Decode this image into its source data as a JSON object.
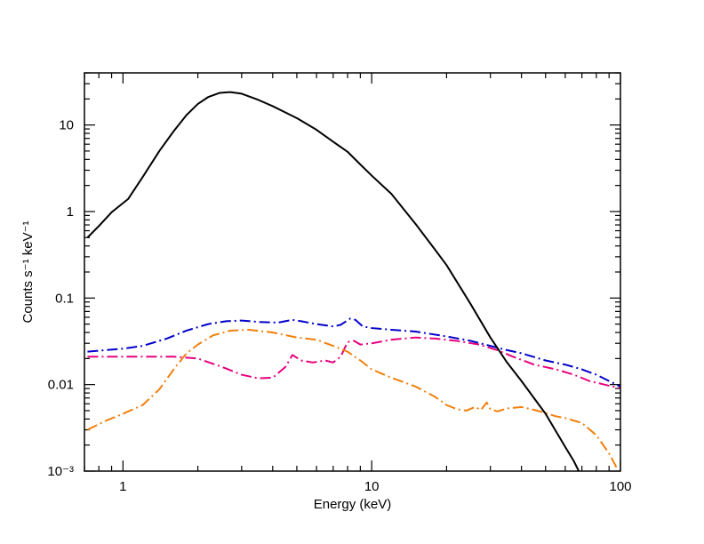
{
  "chart_data": {
    "type": "line",
    "title": "",
    "xlabel": "Energy (keV)",
    "ylabel": "Counts s⁻¹ keV⁻¹",
    "xscale": "log",
    "yscale": "log",
    "xlim": [
      0.7,
      100
    ],
    "ylim": [
      0.001,
      40
    ],
    "grid": false,
    "legend": "none",
    "x_ticks": [
      {
        "value": 1,
        "label": "1"
      },
      {
        "value": 10,
        "label": "10"
      },
      {
        "value": 100,
        "label": "100"
      }
    ],
    "y_ticks": [
      {
        "value": 0.001,
        "label": "10⁻³"
      },
      {
        "value": 0.01,
        "label": "0.01"
      },
      {
        "value": 0.1,
        "label": "0.1"
      },
      {
        "value": 1,
        "label": "1"
      },
      {
        "value": 10,
        "label": "10"
      }
    ],
    "series": [
      {
        "color": "#000000",
        "style": "solid",
        "points": [
          [
            0.72,
            0.5
          ],
          [
            0.8,
            0.68
          ],
          [
            0.9,
            0.98
          ],
          [
            1.05,
            1.4
          ],
          [
            1.2,
            2.5
          ],
          [
            1.4,
            5.0
          ],
          [
            1.6,
            8.5
          ],
          [
            1.8,
            13.0
          ],
          [
            2.0,
            17.5
          ],
          [
            2.2,
            21.0
          ],
          [
            2.45,
            23.5
          ],
          [
            2.7,
            24.0
          ],
          [
            3.0,
            23.0
          ],
          [
            3.5,
            19.5
          ],
          [
            4.0,
            16.5
          ],
          [
            5.0,
            12.0
          ],
          [
            6.0,
            8.8
          ],
          [
            7.0,
            6.4
          ],
          [
            8.0,
            4.9
          ],
          [
            9.0,
            3.5
          ],
          [
            10.0,
            2.6
          ],
          [
            12.0,
            1.6
          ],
          [
            15.0,
            0.72
          ],
          [
            18.0,
            0.36
          ],
          [
            20.0,
            0.24
          ],
          [
            25.0,
            0.085
          ],
          [
            30.0,
            0.035
          ],
          [
            35.0,
            0.018
          ],
          [
            40.0,
            0.011
          ],
          [
            50.0,
            0.0046
          ],
          [
            60.0,
            0.0019
          ],
          [
            65.0,
            0.0013
          ],
          [
            68.0,
            0.001
          ]
        ]
      },
      {
        "color": "#0000cc",
        "style": "dash-dot",
        "points": [
          [
            0.72,
            0.024
          ],
          [
            0.85,
            0.025
          ],
          [
            1.0,
            0.026
          ],
          [
            1.2,
            0.028
          ],
          [
            1.5,
            0.034
          ],
          [
            1.8,
            0.042
          ],
          [
            2.2,
            0.05
          ],
          [
            2.6,
            0.054
          ],
          [
            3.0,
            0.055
          ],
          [
            3.5,
            0.053
          ],
          [
            4.2,
            0.052
          ],
          [
            4.8,
            0.056
          ],
          [
            5.2,
            0.054
          ],
          [
            6.0,
            0.05
          ],
          [
            7.0,
            0.047
          ],
          [
            7.5,
            0.049
          ],
          [
            8.2,
            0.058
          ],
          [
            8.6,
            0.056
          ],
          [
            9.2,
            0.047
          ],
          [
            10.0,
            0.045
          ],
          [
            12.0,
            0.043
          ],
          [
            15.0,
            0.041
          ],
          [
            20.0,
            0.036
          ],
          [
            25.0,
            0.032
          ],
          [
            30.0,
            0.028
          ],
          [
            35.0,
            0.025
          ],
          [
            40.0,
            0.023
          ],
          [
            50.0,
            0.019
          ],
          [
            60.0,
            0.017
          ],
          [
            70.0,
            0.015
          ],
          [
            80.0,
            0.013
          ],
          [
            90.0,
            0.011
          ],
          [
            100.0,
            0.0095
          ]
        ]
      },
      {
        "color": "#e6007e",
        "style": "dash-dot",
        "points": [
          [
            0.72,
            0.021
          ],
          [
            1.0,
            0.021
          ],
          [
            1.3,
            0.021
          ],
          [
            1.6,
            0.021
          ],
          [
            2.0,
            0.02
          ],
          [
            2.5,
            0.016
          ],
          [
            3.0,
            0.013
          ],
          [
            3.5,
            0.0118
          ],
          [
            4.0,
            0.012
          ],
          [
            4.5,
            0.016
          ],
          [
            4.8,
            0.022
          ],
          [
            5.2,
            0.019
          ],
          [
            5.8,
            0.018
          ],
          [
            6.5,
            0.019
          ],
          [
            7.0,
            0.018
          ],
          [
            7.5,
            0.021
          ],
          [
            8.0,
            0.031
          ],
          [
            8.5,
            0.032
          ],
          [
            9.0,
            0.029
          ],
          [
            10.0,
            0.03
          ],
          [
            12.0,
            0.033
          ],
          [
            15.0,
            0.035
          ],
          [
            18.0,
            0.034
          ],
          [
            22.0,
            0.032
          ],
          [
            27.0,
            0.029
          ],
          [
            32.0,
            0.025
          ],
          [
            37.0,
            0.021
          ],
          [
            45.0,
            0.017
          ],
          [
            55.0,
            0.015
          ],
          [
            65.0,
            0.013
          ],
          [
            75.0,
            0.011
          ],
          [
            90.0,
            0.0097
          ],
          [
            100.0,
            0.0091
          ]
        ]
      },
      {
        "color": "#f07f0c",
        "style": "dash-dot",
        "points": [
          [
            0.72,
            0.003
          ],
          [
            0.85,
            0.0038
          ],
          [
            1.0,
            0.0046
          ],
          [
            1.2,
            0.0058
          ],
          [
            1.4,
            0.0088
          ],
          [
            1.6,
            0.015
          ],
          [
            1.8,
            0.023
          ],
          [
            2.0,
            0.029
          ],
          [
            2.3,
            0.037
          ],
          [
            2.7,
            0.042
          ],
          [
            3.2,
            0.043
          ],
          [
            4.0,
            0.04
          ],
          [
            5.0,
            0.035
          ],
          [
            6.0,
            0.033
          ],
          [
            7.0,
            0.028
          ],
          [
            8.0,
            0.024
          ],
          [
            9.0,
            0.019
          ],
          [
            10.0,
            0.015
          ],
          [
            12.0,
            0.012
          ],
          [
            15.0,
            0.0095
          ],
          [
            18.0,
            0.0072
          ],
          [
            20.0,
            0.0058
          ],
          [
            22.0,
            0.0052
          ],
          [
            24.0,
            0.005
          ],
          [
            26.0,
            0.0055
          ],
          [
            27.5,
            0.0051
          ],
          [
            29.0,
            0.0062
          ],
          [
            30.0,
            0.0052
          ],
          [
            32.0,
            0.0049
          ],
          [
            35.0,
            0.0053
          ],
          [
            40.0,
            0.0055
          ],
          [
            45.0,
            0.0051
          ],
          [
            50.0,
            0.0047
          ],
          [
            55.0,
            0.0043
          ],
          [
            60.0,
            0.0041
          ],
          [
            70.0,
            0.0036
          ],
          [
            80.0,
            0.0026
          ],
          [
            90.0,
            0.0016
          ],
          [
            95.0,
            0.0012
          ],
          [
            98.0,
            0.001
          ]
        ]
      }
    ]
  }
}
